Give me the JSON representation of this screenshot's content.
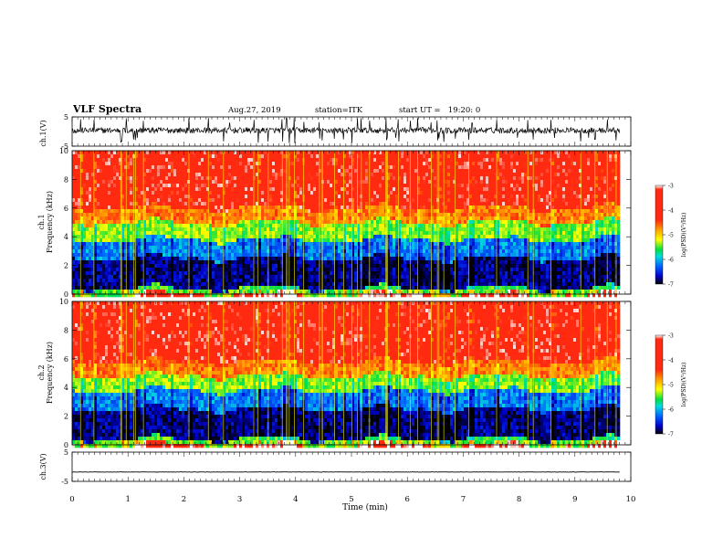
{
  "header": {
    "title": "VLF Spectra",
    "date": "Aug.27, 2019",
    "station": "station=ITK",
    "start": "start UT =   19:20: 0"
  },
  "chart_data": [
    {
      "type": "line",
      "panel": "ch1-waveform",
      "ylabel": "ch.1(V)",
      "ylim": [
        -5,
        5
      ],
      "yticks": [
        5,
        -5
      ],
      "baseline": 0.4,
      "noise_amplitude": 1.0,
      "spike_amplitude": 4.5
    },
    {
      "type": "heatmap",
      "panel": "ch1-spectrogram",
      "ylabel": [
        "ch.1",
        "Frequency (kHz)"
      ],
      "ylim": [
        0,
        10
      ],
      "yticks": [
        0,
        2,
        4,
        6,
        8,
        10
      ],
      "xlim": [
        0,
        9.8
      ],
      "colorbar": {
        "label": "log(PSD)(V²/Hz)",
        "range": [
          -7,
          -3
        ],
        "ticks": [
          -3,
          -4,
          -5,
          -6,
          -7
        ],
        "colors": [
          "#000000",
          "#0000c8",
          "#0064ff",
          "#00dcdc",
          "#00e040",
          "#ffff00",
          "#ffa000",
          "#ff2a10",
          "#ffffff"
        ]
      },
      "bands": [
        {
          "freq_khz": [
            0,
            0.4
          ],
          "level": -5.2
        },
        {
          "freq_khz": [
            0.4,
            2.5
          ],
          "level": -6.7
        },
        {
          "freq_khz": [
            2.5,
            3.8
          ],
          "level": -6.0
        },
        {
          "freq_khz": [
            3.8,
            5.0
          ],
          "level": -5.0
        },
        {
          "freq_khz": [
            5.0,
            6.0
          ],
          "level": -4.0
        },
        {
          "freq_khz": [
            6.0,
            10.0
          ],
          "level": -3.3
        }
      ]
    },
    {
      "type": "heatmap",
      "panel": "ch2-spectrogram",
      "ylabel": [
        "ch.2",
        "Frequency (kHz)"
      ],
      "ylim": [
        0,
        10
      ],
      "yticks": [
        0,
        2,
        4,
        6,
        8,
        10
      ],
      "xlim": [
        0,
        9.8
      ],
      "colorbar": {
        "label": "log(PSD)(V²/Hz)",
        "range": [
          -7,
          -3
        ],
        "ticks": [
          -3,
          -4,
          -5,
          -6,
          -7
        ]
      },
      "bands": [
        {
          "freq_khz": [
            0,
            0.4
          ],
          "level": -5.2
        },
        {
          "freq_khz": [
            0.4,
            2.5
          ],
          "level": -6.7
        },
        {
          "freq_khz": [
            2.5,
            3.8
          ],
          "level": -6.0
        },
        {
          "freq_khz": [
            3.8,
            4.8
          ],
          "level": -5.0
        },
        {
          "freq_khz": [
            4.8,
            5.8
          ],
          "level": -4.0
        },
        {
          "freq_khz": [
            5.8,
            10.0
          ],
          "level": -3.3
        }
      ]
    },
    {
      "type": "line",
      "panel": "ch3-waveform",
      "ylabel": "ch.3(V)",
      "ylim": [
        -5,
        5
      ],
      "yticks": [
        5,
        -5
      ],
      "baseline": -1.8,
      "noise_amplitude": 0.05
    }
  ],
  "xaxis": {
    "label": "Time (min)",
    "xlim": [
      0,
      10
    ],
    "ticks": [
      0,
      1,
      2,
      3,
      4,
      5,
      6,
      7,
      8,
      9,
      10
    ],
    "data_end": 9.8
  },
  "colors": {
    "frame": "#000000",
    "background": "#ffffff"
  }
}
